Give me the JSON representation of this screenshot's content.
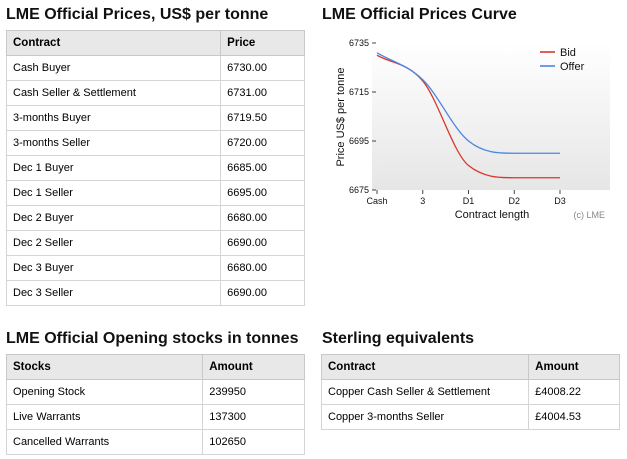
{
  "prices": {
    "title": "LME Official Prices, US$ per tonne",
    "headers": [
      "Contract",
      "Price"
    ],
    "rows": [
      [
        "Cash Buyer",
        "6730.00"
      ],
      [
        "Cash Seller & Settlement",
        "6731.00"
      ],
      [
        "3-months Buyer",
        "6719.50"
      ],
      [
        "3-months Seller",
        "6720.00"
      ],
      [
        "Dec 1 Buyer",
        "6685.00"
      ],
      [
        "Dec 1 Seller",
        "6695.00"
      ],
      [
        "Dec 2 Buyer",
        "6680.00"
      ],
      [
        "Dec 2 Seller",
        "6690.00"
      ],
      [
        "Dec 3 Buyer",
        "6680.00"
      ],
      [
        "Dec 3 Seller",
        "6690.00"
      ]
    ]
  },
  "curve": {
    "title": "LME Official Prices Curve",
    "watermark": "(c) LME"
  },
  "chart_data": {
    "type": "line",
    "title": "LME Official Prices Curve",
    "xlabel": "Contract length",
    "ylabel": "Price US$ per tonne",
    "categories": [
      "Cash",
      "3",
      "D1",
      "D2",
      "D3"
    ],
    "ylim": [
      6675,
      6735
    ],
    "yticks": [
      6675,
      6695,
      6715,
      6735
    ],
    "legend_position": "top-right",
    "grid": false,
    "series": [
      {
        "name": "Bid",
        "color": "#d9362b",
        "values": [
          6730,
          6719.5,
          6685,
          6680,
          6680
        ]
      },
      {
        "name": "Offer",
        "color": "#4a86e0",
        "values": [
          6731,
          6720,
          6695,
          6690,
          6690
        ]
      }
    ]
  },
  "stocks": {
    "title": "LME Official Opening stocks in tonnes",
    "headers": [
      "Stocks",
      "Amount"
    ],
    "rows": [
      [
        "Opening Stock",
        "239950"
      ],
      [
        "Live Warrants",
        "137300"
      ],
      [
        "Cancelled Warrants",
        "102650"
      ]
    ]
  },
  "sterling": {
    "title": "Sterling equivalents",
    "headers": [
      "Contract",
      "Amount"
    ],
    "rows": [
      [
        "Copper Cash Seller & Settlement",
        "£4008.22"
      ],
      [
        "Copper 3-months Seller",
        "£4004.53"
      ]
    ]
  }
}
